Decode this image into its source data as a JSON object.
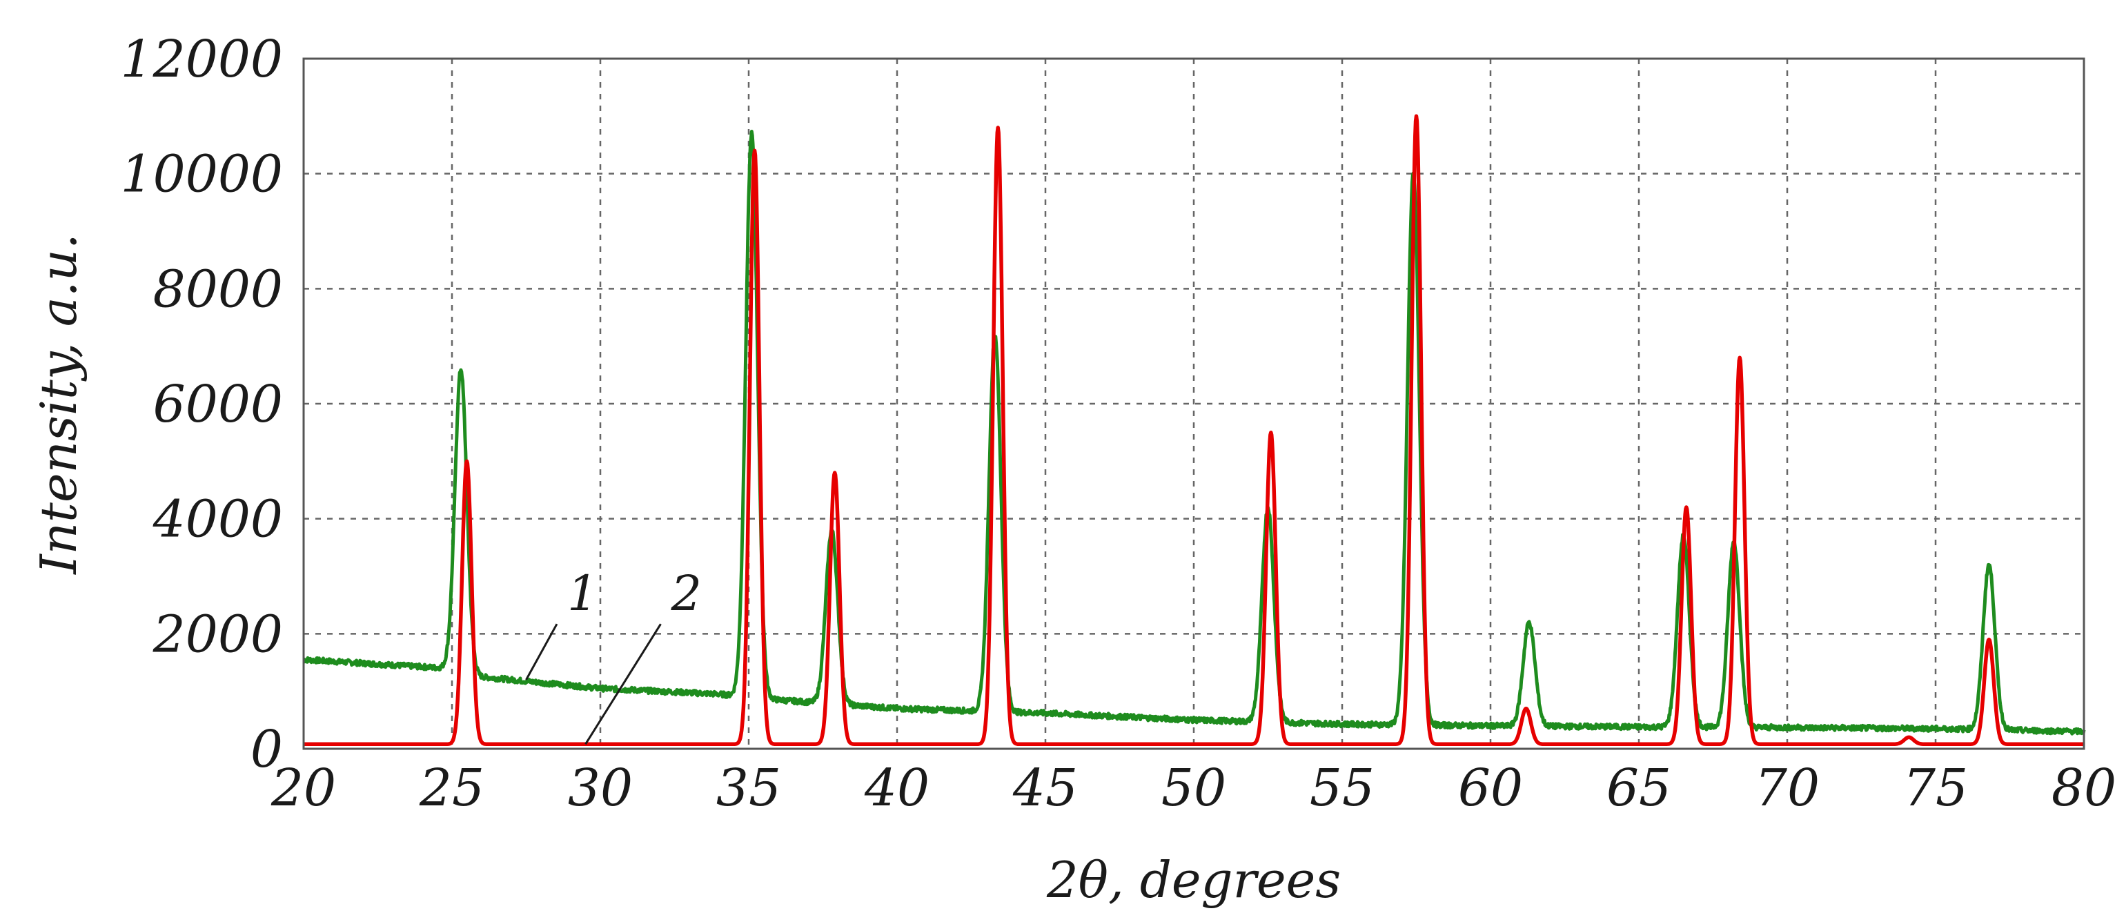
{
  "chart_data": {
    "type": "line",
    "title": "",
    "xlabel": "2θ, degrees",
    "ylabel": "Intensity, a.u.",
    "xlim": [
      20,
      80
    ],
    "ylim": [
      0,
      12000
    ],
    "x_ticks": [
      20,
      25,
      30,
      35,
      40,
      45,
      50,
      55,
      60,
      65,
      70,
      75,
      80
    ],
    "y_ticks": [
      0,
      2000,
      4000,
      6000,
      8000,
      10000,
      12000
    ],
    "grid": true,
    "grid_style": "dashed",
    "legend": "none",
    "series": [
      {
        "label": "1",
        "color": "#1e8c1e",
        "baseline": [
          [
            20,
            1550
          ],
          [
            24.8,
            1400
          ],
          [
            26,
            1250
          ],
          [
            30,
            1050
          ],
          [
            34,
            950
          ],
          [
            36,
            850
          ],
          [
            40,
            700
          ],
          [
            45,
            620
          ],
          [
            50,
            500
          ],
          [
            55,
            430
          ],
          [
            60,
            400
          ],
          [
            65,
            380
          ],
          [
            70,
            370
          ],
          [
            75,
            350
          ],
          [
            80,
            300
          ]
        ],
        "peaks": [
          {
            "x": 25.3,
            "y": 6600
          },
          {
            "x": 35.1,
            "y": 10700
          },
          {
            "x": 37.8,
            "y": 3800
          },
          {
            "x": 43.3,
            "y": 7200
          },
          {
            "x": 52.5,
            "y": 4200
          },
          {
            "x": 57.4,
            "y": 10000
          },
          {
            "x": 61.3,
            "y": 2200
          },
          {
            "x": 66.5,
            "y": 3700
          },
          {
            "x": 68.2,
            "y": 3600
          },
          {
            "x": 76.8,
            "y": 3200
          }
        ]
      },
      {
        "label": "2",
        "color": "#e60000",
        "baseline": [
          [
            20,
            80
          ],
          [
            80,
            80
          ]
        ],
        "peaks": [
          {
            "x": 25.5,
            "y": 5000
          },
          {
            "x": 35.2,
            "y": 10400
          },
          {
            "x": 37.9,
            "y": 4800
          },
          {
            "x": 43.4,
            "y": 10800
          },
          {
            "x": 52.6,
            "y": 5500
          },
          {
            "x": 57.5,
            "y": 11000
          },
          {
            "x": 61.2,
            "y": 700
          },
          {
            "x": 66.6,
            "y": 4200
          },
          {
            "x": 68.4,
            "y": 6800
          },
          {
            "x": 74.1,
            "y": 200
          },
          {
            "x": 76.8,
            "y": 1900
          }
        ]
      }
    ],
    "annotations": [
      {
        "text": "1",
        "target_x": 27.5,
        "target_y": 1200
      },
      {
        "text": "2",
        "target_x": 29.5,
        "target_y": 80
      }
    ]
  }
}
